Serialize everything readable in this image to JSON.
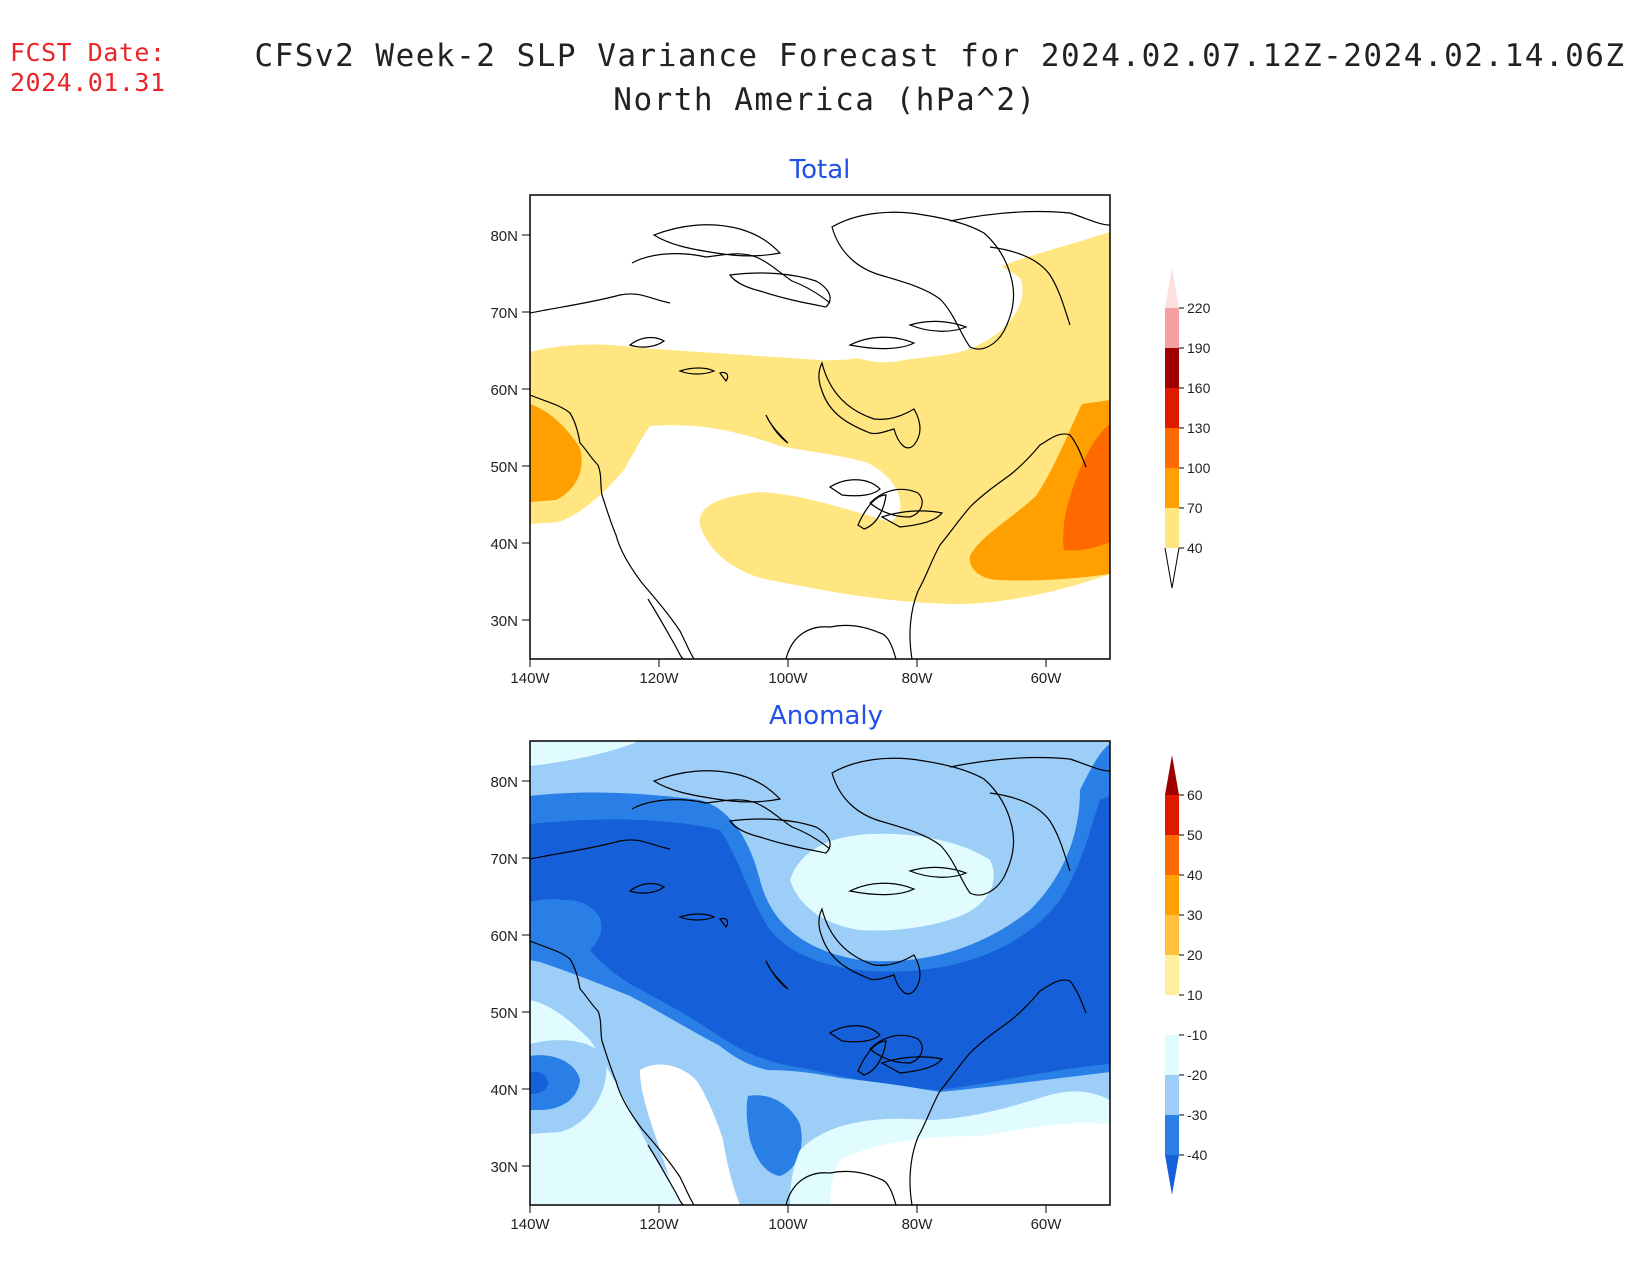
{
  "header": {
    "fcst_label": "FCST Date:",
    "fcst_date": "2024.01.31",
    "title_line1": "CFSv2 Week-2 SLP Variance Forecast for 2024.02.07.12Z-2024.02.14.06Z",
    "title_line2": "North America (hPa^2)"
  },
  "axes": {
    "lat_labels": [
      "80N",
      "70N",
      "60N",
      "50N",
      "40N",
      "30N"
    ],
    "lon_labels": [
      "140W",
      "120W",
      "100W",
      "80W",
      "60W"
    ]
  },
  "panels": {
    "total": {
      "title": "Total",
      "colorbar_levels": [
        "220",
        "190",
        "160",
        "130",
        "100",
        "70",
        "40"
      ],
      "colorbar_colors": [
        "#fde0e0",
        "#f4a0a0",
        "#a00000",
        "#e01a00",
        "#ff6a00",
        "#ffa000",
        "#ffe680"
      ]
    },
    "anomaly": {
      "title": "Anomaly",
      "colorbar_levels": [
        "60",
        "50",
        "40",
        "30",
        "20",
        "10",
        "-10",
        "-20",
        "-30",
        "-40"
      ],
      "colorbar_colors": [
        "#a00000",
        "#e01a00",
        "#ff6a00",
        "#ffa000",
        "#ffc040",
        "#fff0a0",
        "#ffffff",
        "#e0fcff",
        "#9ccef8",
        "#2a7fe6",
        "#1560d8"
      ]
    },
    "map": {
      "land_color": "#ffffff",
      "coast_color": "#000000"
    }
  }
}
